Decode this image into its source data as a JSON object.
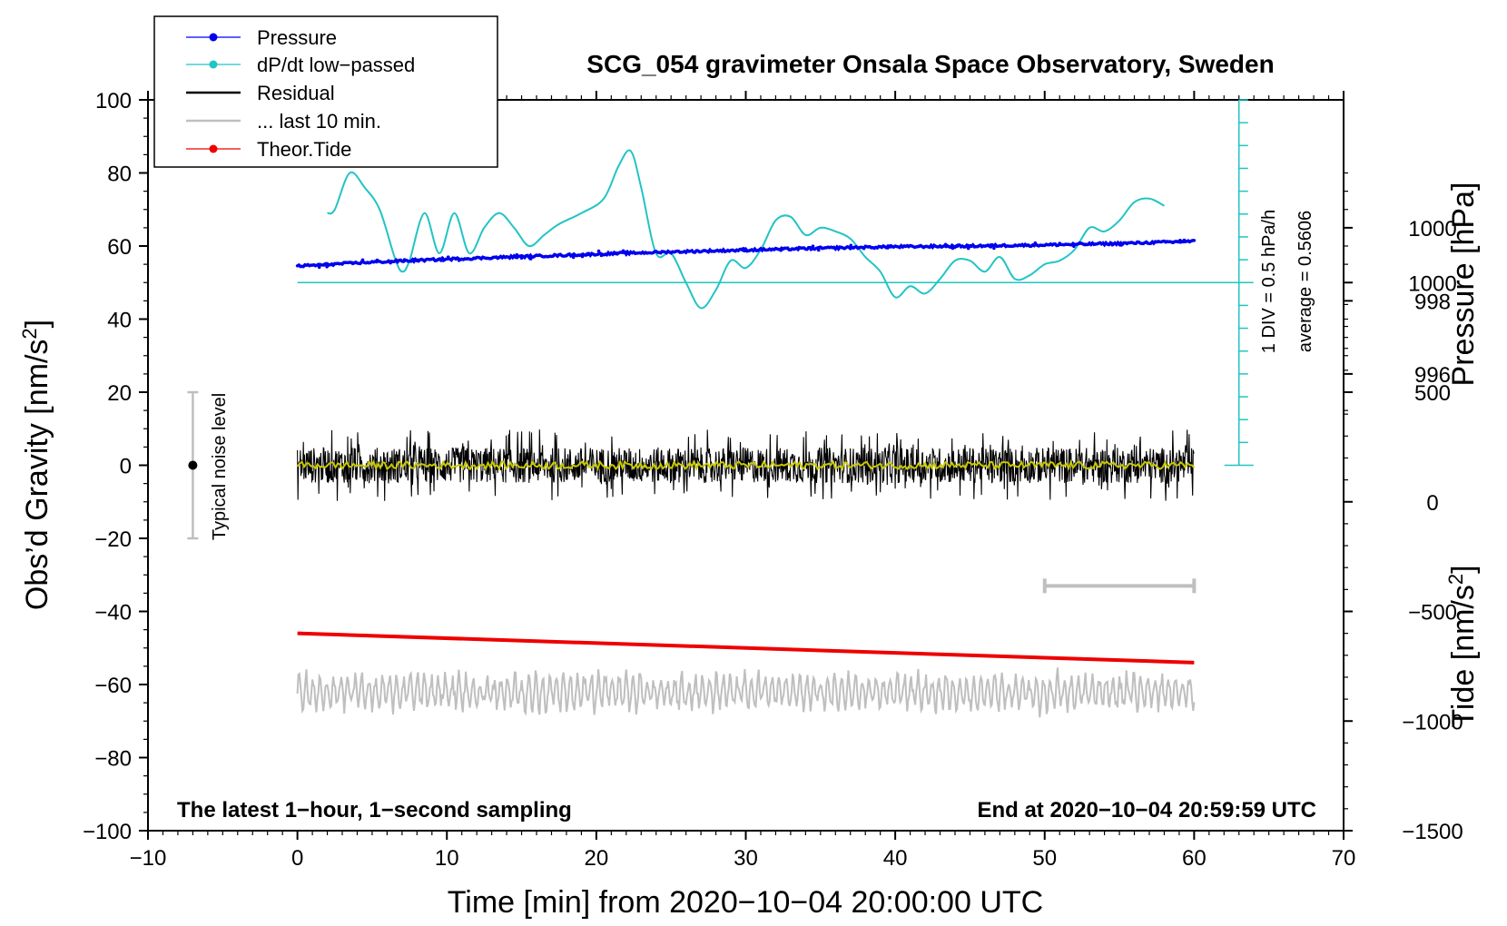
{
  "chart_data": {
    "type": "line",
    "title": "SCG_054 gravimeter Onsala Space Observatory, Sweden",
    "xlabel": "Time [min] from 2020−10−04 20:00:00 UTC",
    "ylabel": "Obs’d Gravity [nm/s",
    "ylabel_sup": "2",
    "ylabel_close": "]",
    "xlim": [
      -10,
      70
    ],
    "ylim": [
      -100,
      100
    ],
    "x_ticks": [
      {
        "value": -10,
        "label": "−10"
      },
      {
        "value": 0,
        "label": "0"
      },
      {
        "value": 10,
        "label": "10"
      },
      {
        "value": 20,
        "label": "20"
      },
      {
        "value": 30,
        "label": "30"
      },
      {
        "value": 40,
        "label": "40"
      },
      {
        "value": 50,
        "label": "50"
      },
      {
        "value": 60,
        "label": "60"
      },
      {
        "value": 70,
        "label": "70"
      }
    ],
    "y_ticks": [
      {
        "value": 100,
        "label": "100"
      },
      {
        "value": 80,
        "label": "80"
      },
      {
        "value": 60,
        "label": "60"
      },
      {
        "value": 40,
        "label": "40"
      },
      {
        "value": 20,
        "label": "20"
      },
      {
        "value": 0,
        "label": "0"
      },
      {
        "value": -20,
        "label": "−20"
      },
      {
        "value": -40,
        "label": "−40"
      },
      {
        "value": -60,
        "label": "−60"
      },
      {
        "value": -80,
        "label": "−80"
      },
      {
        "value": -100,
        "label": "−100"
      }
    ],
    "pressure_axis": {
      "label": "Pressure [hPa]",
      "ticks": [
        {
          "value": 1000,
          "label": "1000"
        },
        {
          "value": 998,
          "label": "998"
        },
        {
          "value": 996,
          "label": "996"
        }
      ],
      "hpa_at_plus60": 999.5,
      "hpa_per_unit": 0.1
    },
    "tide_axis": {
      "label": "Tide [nm/s",
      "label_sup": "2",
      "label_close": "]",
      "ticks": [
        {
          "value": 1000,
          "label": "1000"
        },
        {
          "value": 500,
          "label": "500"
        },
        {
          "value": 0,
          "label": "0"
        },
        {
          "value": -500,
          "label": "−500"
        },
        {
          "value": -1000,
          "label": "−1000"
        },
        {
          "value": -1500,
          "label": "−1500"
        }
      ],
      "tide_at_zero_grav": -1500,
      "tide_per_unit": 16.6667
    },
    "dpdt_scale": {
      "line1": "1 DIV = 0.5 hPa/h",
      "line2": "average = 0.5606",
      "baseline_y": 50,
      "top_y": 100,
      "bottom_y": 0,
      "x": 63
    },
    "noise_bar": {
      "label": "Typical noise level",
      "x": -7,
      "y_center": 0,
      "y_low": -20,
      "y_high": 20
    },
    "last10_bar": {
      "x_start": 50,
      "x_end": 60,
      "y": -33
    },
    "annotations": {
      "left": "The latest 1−hour, 1−second sampling",
      "right": "End at 2020−10−04 20:59:59 UTC"
    },
    "legend": [
      {
        "name": "Pressure",
        "color": "#0000ee",
        "marker": true
      },
      {
        "name": "dP/dt low−passed",
        "color": "#22c4c4",
        "marker": true
      },
      {
        "name": "Residual",
        "color": "#000000",
        "marker": false
      },
      {
        "name": "... last 10 min.",
        "color": "#bfbfbf",
        "marker": false
      },
      {
        "name": "Theor.Tide",
        "color": "#ee0000",
        "marker": true
      }
    ],
    "series": [
      {
        "name": "Pressure",
        "color": "#0000ee",
        "x": [
          0,
          5,
          10,
          15,
          20,
          25,
          30,
          35,
          40,
          45,
          50,
          55,
          60
        ],
        "values": [
          54.5,
          55.6,
          56.4,
          57.1,
          57.8,
          58.4,
          58.9,
          59.4,
          59.8,
          60.0,
          60.3,
          60.7,
          61.3
        ]
      },
      {
        "name": "dP/dt low−passed",
        "color": "#22c4c4",
        "x": [
          2,
          2.5,
          3.5,
          4.5,
          5.5,
          6.5,
          7,
          7.5,
          8.5,
          9.5,
          10.5,
          11.5,
          12.5,
          13.5,
          14.5,
          15.5,
          16.5,
          17.5,
          19,
          20.5,
          21.5,
          22.3,
          23,
          24,
          25,
          26,
          27,
          28,
          29,
          30,
          31,
          32,
          33,
          34,
          35,
          36,
          37,
          38,
          39,
          40,
          41,
          42,
          43,
          44,
          45,
          46,
          47,
          48,
          49,
          50,
          51,
          52,
          53,
          54,
          55,
          56,
          57,
          58
        ],
        "values": [
          69,
          70,
          80,
          76,
          70,
          57,
          53,
          56,
          69,
          58,
          69,
          58,
          65,
          69,
          65,
          60,
          63,
          66,
          69,
          73,
          82,
          86,
          76,
          58,
          58,
          50,
          43,
          48,
          56,
          54,
          59,
          67,
          68,
          63,
          65,
          64,
          62,
          57,
          53,
          46,
          49,
          47,
          51,
          56,
          56,
          53,
          57,
          51,
          52,
          55,
          56,
          59,
          65,
          64,
          67,
          72,
          73,
          71
        ]
      },
      {
        "name": "Residual",
        "color": "#000000",
        "x_range": [
          0,
          60
        ],
        "center": 0,
        "amplitude": 7
      },
      {
        "name": "Residual smoothed",
        "color": "#c8c800",
        "x_range": [
          0,
          60
        ],
        "center": 0,
        "amplitude": 1
      },
      {
        "name": "... last 10 min.",
        "color": "#bfbfbf",
        "x_range": [
          0,
          60
        ],
        "center": -62,
        "amplitude": 6
      },
      {
        "name": "Theor.Tide",
        "color": "#ee0000",
        "x": [
          0,
          60
        ],
        "values": [
          -46,
          -54
        ]
      }
    ]
  }
}
